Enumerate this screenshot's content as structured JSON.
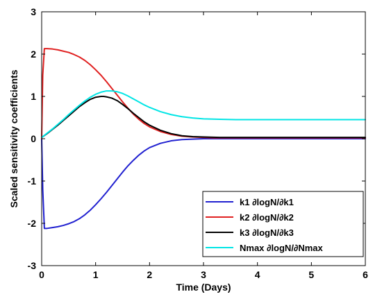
{
  "chart_data": {
    "type": "line",
    "title": "",
    "xlabel": "Time (Days)",
    "ylabel": "Scaled sensitivity coefficients",
    "xlim": [
      0,
      6
    ],
    "ylim": [
      -3,
      3
    ],
    "xticks": [
      0,
      1,
      2,
      3,
      4,
      5,
      6
    ],
    "yticks": [
      -3,
      -2,
      -1,
      0,
      1,
      2,
      3
    ],
    "grid": false,
    "legend_position": "bottom-right",
    "series": [
      {
        "name": "k1 ∂logN/∂k1",
        "color": "#2020d0",
        "x": [
          0,
          0.02,
          0.05,
          0.1,
          0.2,
          0.3,
          0.4,
          0.5,
          0.6,
          0.7,
          0.8,
          0.9,
          1.0,
          1.1,
          1.2,
          1.3,
          1.4,
          1.5,
          1.6,
          1.7,
          1.8,
          1.9,
          2.0,
          2.2,
          2.4,
          2.6,
          2.8,
          3.0,
          3.5,
          4,
          5,
          6
        ],
        "y": [
          0.0,
          -1.2,
          -2.12,
          -2.12,
          -2.1,
          -2.08,
          -2.05,
          -2.01,
          -1.96,
          -1.89,
          -1.8,
          -1.69,
          -1.56,
          -1.42,
          -1.27,
          -1.11,
          -0.95,
          -0.79,
          -0.64,
          -0.51,
          -0.39,
          -0.29,
          -0.21,
          -0.11,
          -0.05,
          -0.02,
          -0.01,
          0.0,
          0.0,
          0.0,
          0.0,
          0.0
        ]
      },
      {
        "name": "k2 ∂logN/∂k2",
        "color": "#e02020",
        "x": [
          0,
          0.02,
          0.05,
          0.1,
          0.2,
          0.3,
          0.4,
          0.5,
          0.6,
          0.7,
          0.8,
          0.9,
          1.0,
          1.1,
          1.2,
          1.3,
          1.4,
          1.5,
          1.6,
          1.7,
          1.8,
          1.9,
          2.0,
          2.2,
          2.4,
          2.6,
          2.8,
          3.0,
          3.2,
          3.5,
          4,
          5,
          6
        ],
        "y": [
          0.0,
          1.5,
          2.13,
          2.13,
          2.12,
          2.1,
          2.07,
          2.04,
          1.99,
          1.93,
          1.85,
          1.75,
          1.63,
          1.5,
          1.35,
          1.19,
          1.03,
          0.87,
          0.72,
          0.58,
          0.46,
          0.36,
          0.28,
          0.17,
          0.1,
          0.06,
          0.04,
          0.03,
          0.02,
          0.02,
          0.02,
          0.02,
          0.02
        ]
      },
      {
        "name": "k3 ∂logN/∂k3",
        "color": "#000000",
        "x": [
          0,
          0.1,
          0.2,
          0.3,
          0.4,
          0.5,
          0.6,
          0.7,
          0.8,
          0.9,
          1.0,
          1.1,
          1.15,
          1.2,
          1.3,
          1.4,
          1.5,
          1.6,
          1.7,
          1.8,
          1.9,
          2.0,
          2.2,
          2.4,
          2.6,
          2.8,
          3.0,
          3.3,
          3.6,
          4,
          5,
          6
        ],
        "y": [
          0.03,
          0.12,
          0.22,
          0.32,
          0.43,
          0.54,
          0.65,
          0.76,
          0.85,
          0.93,
          0.98,
          1.0,
          1.0,
          0.99,
          0.96,
          0.9,
          0.81,
          0.71,
          0.6,
          0.5,
          0.4,
          0.32,
          0.2,
          0.12,
          0.07,
          0.05,
          0.04,
          0.03,
          0.03,
          0.03,
          0.03,
          0.03
        ]
      },
      {
        "name": "Nmax ∂logN/∂Nmax",
        "color": "#00e5e5",
        "x": [
          0,
          0.1,
          0.2,
          0.3,
          0.4,
          0.5,
          0.6,
          0.7,
          0.8,
          0.9,
          1.0,
          1.1,
          1.2,
          1.3,
          1.4,
          1.5,
          1.6,
          1.7,
          1.8,
          1.9,
          2.0,
          2.2,
          2.4,
          2.6,
          2.8,
          3.0,
          3.3,
          3.6,
          4,
          5,
          6
        ],
        "y": [
          0.03,
          0.13,
          0.23,
          0.34,
          0.45,
          0.57,
          0.68,
          0.79,
          0.89,
          0.98,
          1.05,
          1.1,
          1.13,
          1.13,
          1.11,
          1.07,
          1.01,
          0.94,
          0.87,
          0.8,
          0.74,
          0.64,
          0.57,
          0.52,
          0.49,
          0.47,
          0.46,
          0.45,
          0.45,
          0.45,
          0.45
        ]
      }
    ]
  }
}
